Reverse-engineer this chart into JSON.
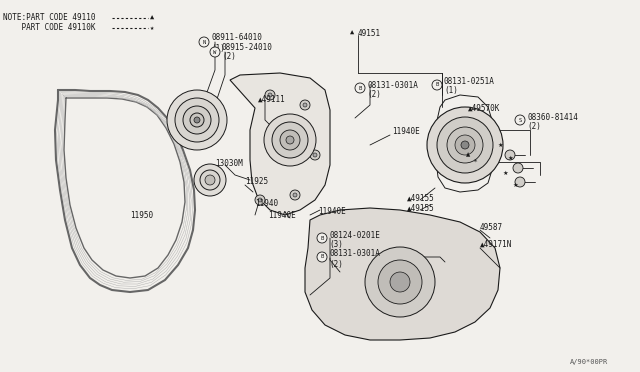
{
  "bg_color": "#f2f0ec",
  "line_color": "#1a1a1a",
  "watermark": "A/90*00PR",
  "fig_w": 6.4,
  "fig_h": 3.72,
  "dpi": 100,
  "note1": "NOTE:PART CODE 49110",
  "note2": "    PART CODE 49110K",
  "dot_line": "............",
  "tri": "▲",
  "star": "★"
}
